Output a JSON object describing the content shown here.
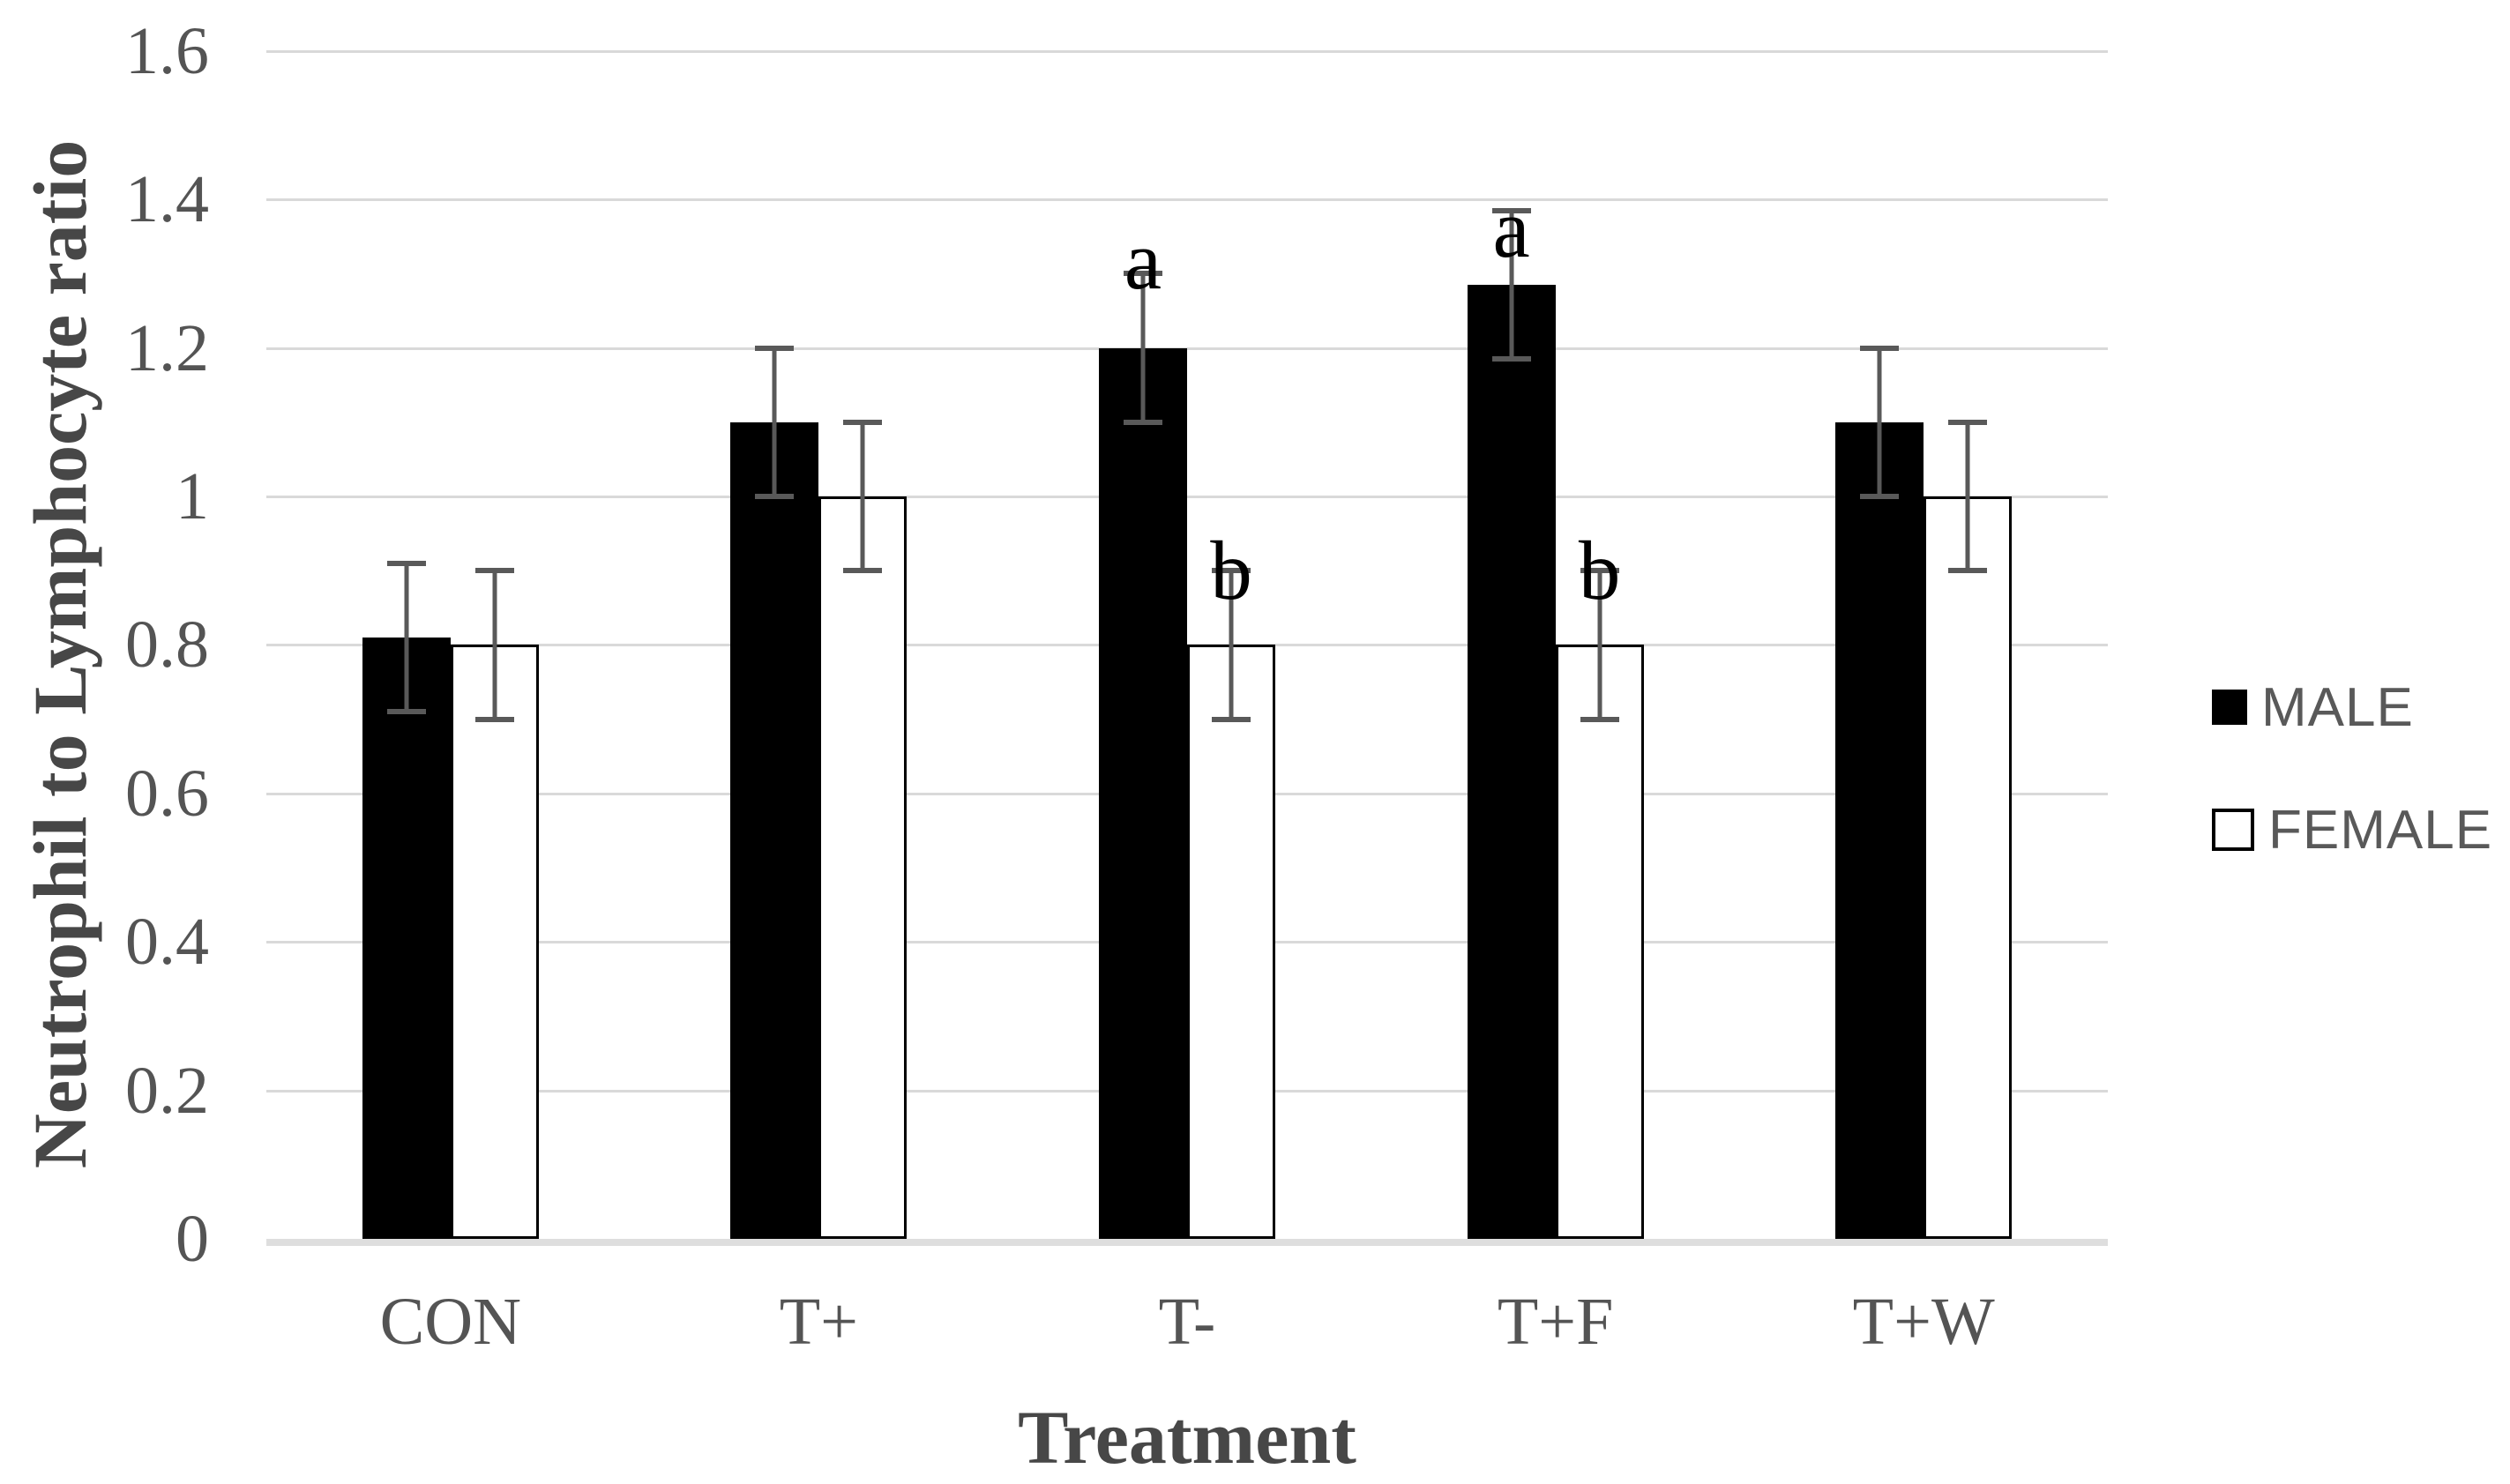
{
  "chart_data": {
    "type": "bar",
    "title": "",
    "xlabel": "Treatment",
    "ylabel": "Neutrophil to Lymphocyte ratio",
    "categories": [
      "CON",
      "T+",
      "T-",
      "T+F",
      "T+W"
    ],
    "series": [
      {
        "name": "MALE",
        "fill": "#000000",
        "border": "#000000",
        "values": [
          0.81,
          1.1,
          1.2,
          1.285,
          1.1
        ],
        "errors": [
          0.1,
          0.1,
          0.1,
          0.1,
          0.1
        ],
        "annotations": [
          "",
          "",
          "a",
          "a",
          ""
        ]
      },
      {
        "name": "FEMALE",
        "fill": "#ffffff",
        "border": "#000000",
        "values": [
          0.8,
          1.0,
          0.8,
          0.8,
          1.0
        ],
        "errors": [
          0.1,
          0.1,
          0.1,
          0.1,
          0.1
        ],
        "annotations": [
          "",
          "",
          "b",
          "b",
          ""
        ]
      }
    ],
    "ylim": [
      0,
      1.6
    ],
    "ytick_step": 0.2,
    "ytick_labels": [
      "0",
      "0.2",
      "0.4",
      "0.6",
      "0.8",
      "1",
      "1.2",
      "1.4",
      "1.6"
    ],
    "grid": true,
    "legend_position": "right",
    "colors": {
      "gridline": "#d9d9d9",
      "axis_line": "#dedede",
      "error_bar": "#595959",
      "tick_label": "#545454",
      "axis_title": "#474747",
      "legend_text": "#595959",
      "annotation": "#000000"
    }
  }
}
